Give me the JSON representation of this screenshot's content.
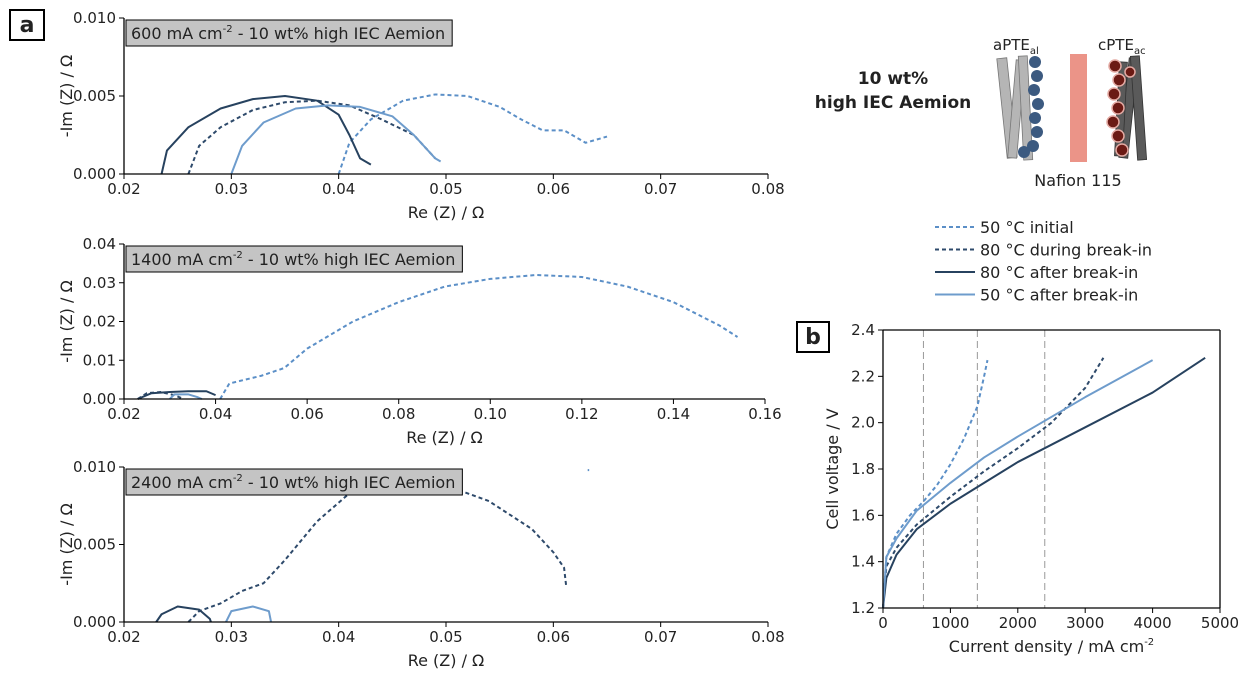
{
  "figure": {
    "panel_labels": [
      "a",
      "b"
    ],
    "diagram": {
      "heading": [
        "10 wt%",
        "high IEC Aemion"
      ],
      "anode": {
        "text": "aPTE",
        "sub": "al"
      },
      "cathode": {
        "text": "cPTE",
        "sub": "ac"
      },
      "membrane": "Nafion 115"
    }
  },
  "chart_data": [
    {
      "type": "line",
      "title": {
        "text": "600 mA cm",
        "sup": "-2",
        "tail": " - 10 wt% high IEC Aemion"
      },
      "x_label": "Re (Z) / Ω",
      "y_label": "-Im (Z) / Ω",
      "xlim": [
        0.02,
        0.08
      ],
      "xticks": [
        0.02,
        0.03,
        0.04,
        0.05,
        0.06,
        0.07,
        0.08
      ],
      "ylim": [
        0,
        0.01
      ],
      "yticks": [
        {
          "value": 0,
          "label": "0.000"
        },
        {
          "value": 0.005,
          "label": "0.005"
        },
        {
          "value": 0.01,
          "label": "0.010"
        }
      ],
      "series": [
        {
          "color": "#5b8fc7",
          "dash": true,
          "x": [
            0.04,
            0.041,
            0.043,
            0.046,
            0.049,
            0.052,
            0.055,
            0.057,
            0.059,
            0.061,
            0.063,
            0.065
          ],
          "values": [
            0,
            0.002,
            0.0035,
            0.0047,
            0.0051,
            0.005,
            0.0043,
            0.0035,
            0.0028,
            0.0028,
            0.002,
            0.0024
          ]
        },
        {
          "color": "#2e4a6b",
          "dash": true,
          "x": [
            0.026,
            0.027,
            0.029,
            0.032,
            0.035,
            0.038,
            0.041,
            0.044,
            0.047,
            0.049
          ],
          "values": [
            0,
            0.0018,
            0.003,
            0.0041,
            0.0046,
            0.0047,
            0.0044,
            0.0035,
            0.0025,
            0.001
          ]
        },
        {
          "color": "#27425f",
          "dash": false,
          "x": [
            0.0235,
            0.024,
            0.026,
            0.029,
            0.032,
            0.035,
            0.038,
            0.04,
            0.041,
            0.042,
            0.043
          ],
          "values": [
            0,
            0.0015,
            0.003,
            0.0042,
            0.0048,
            0.005,
            0.0047,
            0.0038,
            0.0025,
            0.001,
            0.0006
          ]
        },
        {
          "color": "#6e9ccc",
          "dash": false,
          "x": [
            0.03,
            0.031,
            0.033,
            0.036,
            0.039,
            0.042,
            0.045,
            0.047,
            0.049,
            0.0495
          ],
          "values": [
            0,
            0.0018,
            0.0033,
            0.0042,
            0.0044,
            0.0043,
            0.0037,
            0.0025,
            0.001,
            0.0008
          ]
        }
      ]
    },
    {
      "type": "line",
      "title": {
        "text": "1400 mA cm",
        "sup": "-2",
        "tail": " - 10 wt% high IEC Aemion"
      },
      "x_label": "Re (Z) / Ω",
      "y_label": "-Im (Z) / Ω",
      "xlim": [
        0.02,
        0.16
      ],
      "xticks": [
        0.02,
        0.04,
        0.06,
        0.08,
        {
          "value": 0.1,
          "label": "0.10"
        },
        0.12,
        0.14,
        0.16
      ],
      "ylim": [
        0,
        0.04
      ],
      "yticks": [
        {
          "value": 0,
          "label": "0.00"
        },
        0.01,
        0.02,
        0.03,
        0.04
      ],
      "series": [
        {
          "color": "#5b8fc7",
          "dash": true,
          "x": [
            0.041,
            0.043,
            0.05,
            0.055,
            0.06,
            0.07,
            0.08,
            0.09,
            0.1,
            0.11,
            0.12,
            0.13,
            0.14,
            0.15,
            0.154
          ],
          "values": [
            0,
            0.004,
            0.006,
            0.008,
            0.013,
            0.02,
            0.025,
            0.029,
            0.031,
            0.032,
            0.0315,
            0.029,
            0.025,
            0.019,
            0.016
          ]
        },
        {
          "color": "#2e4a6b",
          "dash": true,
          "x": [
            0.023,
            0.025,
            0.028,
            0.031,
            0.033
          ],
          "values": [
            0,
            0.0015,
            0.0018,
            0.001,
            0
          ]
        },
        {
          "color": "#27425f",
          "dash": false,
          "x": [
            0.023,
            0.026,
            0.03,
            0.034,
            0.038,
            0.04
          ],
          "values": [
            0,
            0.0015,
            0.0018,
            0.002,
            0.002,
            0.001
          ]
        },
        {
          "color": "#6e9ccc",
          "dash": false,
          "x": [
            0.03,
            0.031,
            0.034,
            0.036,
            0.037
          ],
          "values": [
            0,
            0.0012,
            0.0012,
            0.0005,
            0
          ]
        }
      ]
    },
    {
      "type": "line",
      "title": {
        "text": "2400 mA cm",
        "sup": "-2",
        "tail": " - 10 wt% high IEC Aemion"
      },
      "x_label": "Re (Z) / Ω",
      "y_label": "-Im (Z) / Ω",
      "xlim": [
        0.02,
        0.08
      ],
      "xticks": [
        0.02,
        0.03,
        0.04,
        0.05,
        0.06,
        0.07,
        0.08
      ],
      "ylim": [
        0,
        0.01
      ],
      "yticks": [
        {
          "value": 0,
          "label": "0.000"
        },
        {
          "value": 0.005,
          "label": "0.005"
        },
        {
          "value": 0.01,
          "label": "0.010"
        }
      ],
      "series": [
        {
          "color": "#5b8fc7",
          "dash": true,
          "x": [
            0.0632
          ],
          "values": [
            0.0098
          ]
        },
        {
          "color": "#2e4a6b",
          "dash": true,
          "x": [
            0.026,
            0.027,
            0.029,
            0.031,
            0.033,
            0.035,
            0.038,
            0.041,
            0.045,
            0.05,
            0.054,
            0.058,
            0.06,
            0.061,
            0.0612
          ],
          "values": [
            0,
            0.0007,
            0.0012,
            0.002,
            0.0025,
            0.004,
            0.0065,
            0.0083,
            0.009,
            0.0088,
            0.0078,
            0.006,
            0.0045,
            0.0035,
            0.0023
          ]
        },
        {
          "color": "#27425f",
          "dash": false,
          "x": [
            0.023,
            0.0235,
            0.025,
            0.027,
            0.028,
            0.0281
          ],
          "values": [
            0,
            0.0005,
            0.001,
            0.0008,
            0.0002,
            0
          ]
        },
        {
          "color": "#6e9ccc",
          "dash": false,
          "x": [
            0.0295,
            0.03,
            0.032,
            0.0335,
            0.0337
          ],
          "values": [
            0,
            0.0007,
            0.001,
            0.0007,
            0
          ]
        }
      ]
    },
    {
      "type": "line",
      "frame": true,
      "x_label": {
        "text": "Current density / mA cm",
        "sup": "-2"
      },
      "y_label": "Cell voltage / V",
      "xlim": [
        0,
        5000
      ],
      "xticks": [
        0,
        1000,
        2000,
        3000,
        4000,
        5000
      ],
      "ylim": [
        1.2,
        2.4
      ],
      "yticks": [
        1.2,
        1.4,
        1.6,
        1.8,
        {
          "value": 2,
          "label": "2.0"
        },
        2.2,
        2.4
      ],
      "vlines": [
        600,
        1400,
        2400
      ],
      "series": [
        {
          "name": "50 °C initial",
          "color": "#5b8fc7",
          "dash": true,
          "x": [
            0,
            50,
            200,
            400,
            600,
            800,
            1000,
            1200,
            1400,
            1500,
            1550
          ],
          "values": [
            1.2,
            1.42,
            1.52,
            1.6,
            1.66,
            1.73,
            1.82,
            1.93,
            2.07,
            2.2,
            2.27
          ]
        },
        {
          "name": "80 °C during break-in",
          "color": "#2e4a6b",
          "dash": true,
          "x": [
            0,
            50,
            200,
            500,
            1000,
            1500,
            2000,
            2500,
            3000,
            3270
          ],
          "values": [
            1.2,
            1.38,
            1.46,
            1.56,
            1.68,
            1.79,
            1.89,
            2.0,
            2.15,
            2.28
          ]
        },
        {
          "name": "80 °C after break-in",
          "color": "#27425f",
          "dash": false,
          "x": [
            0,
            50,
            200,
            500,
            1000,
            1500,
            2000,
            3000,
            4000,
            4780
          ],
          "values": [
            1.2,
            1.33,
            1.43,
            1.54,
            1.65,
            1.74,
            1.83,
            1.98,
            2.13,
            2.28
          ]
        },
        {
          "name": "50 °C after break-in",
          "color": "#6e9ccc",
          "dash": false,
          "x": [
            0,
            50,
            200,
            500,
            1000,
            1500,
            2000,
            3000,
            4000
          ],
          "values": [
            1.2,
            1.42,
            1.5,
            1.62,
            1.74,
            1.85,
            1.94,
            2.11,
            2.27
          ]
        }
      ]
    }
  ]
}
